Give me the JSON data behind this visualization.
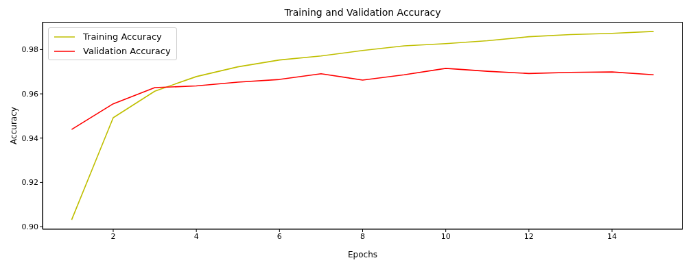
{
  "chart_data": {
    "type": "line",
    "title": "Training and Validation Accuracy",
    "xlabel": "Epochs",
    "ylabel": "Accuracy",
    "x": [
      1,
      2,
      3,
      4,
      5,
      6,
      7,
      8,
      9,
      10,
      11,
      12,
      13,
      14,
      15
    ],
    "series": [
      {
        "name": "Training Accuracy",
        "color": "#bfbf00",
        "values": [
          0.9031,
          0.9492,
          0.9612,
          0.9678,
          0.9722,
          0.9753,
          0.9771,
          0.9796,
          0.9817,
          0.9827,
          0.984,
          0.9858,
          0.9868,
          0.9873,
          0.9882
        ]
      },
      {
        "name": "Validation Accuracy",
        "color": "#ff0000",
        "values": [
          0.9439,
          0.9555,
          0.9628,
          0.9636,
          0.9653,
          0.9665,
          0.9691,
          0.9662,
          0.9686,
          0.9715,
          0.9702,
          0.9692,
          0.9697,
          0.9699,
          0.9686
        ]
      }
    ],
    "xlim": [
      0.3,
      15.7
    ],
    "xticks": [
      2,
      4,
      6,
      8,
      10,
      12,
      14
    ],
    "ylim": [
      0.8988,
      0.9925
    ],
    "yticks": [
      {
        "value": 0.9,
        "label": "0.90"
      },
      {
        "value": 0.92,
        "label": "0.92"
      },
      {
        "value": 0.94,
        "label": "0.94"
      },
      {
        "value": 0.96,
        "label": "0.96"
      },
      {
        "value": 0.98,
        "label": "0.98"
      }
    ],
    "grid": false,
    "legend": "top left",
    "marker": "none",
    "line_style": "solid"
  }
}
